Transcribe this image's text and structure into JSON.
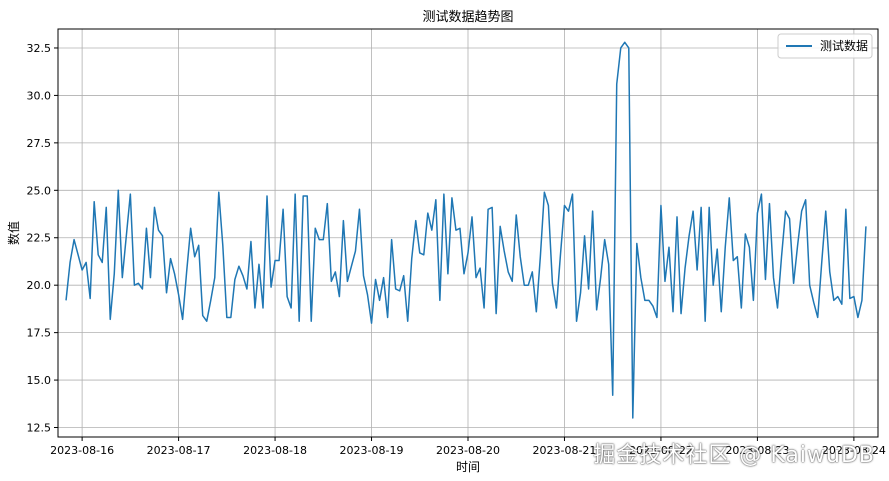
{
  "chart_data": {
    "type": "line",
    "title": "测试数据趋势图",
    "xlabel": "时间",
    "ylabel": "数值",
    "grid": true,
    "legend_position": "top-right",
    "color": "#1f77b4",
    "xlim": [
      "2023-08-15T18:00",
      "2023-08-24T06:00"
    ],
    "ylim": [
      12.0,
      33.5
    ],
    "yticks": [
      12.5,
      15.0,
      17.5,
      20.0,
      22.5,
      25.0,
      27.5,
      30.0,
      32.5
    ],
    "ytick_labels": [
      "12.5",
      "15.0",
      "17.5",
      "20.0",
      "22.5",
      "25.0",
      "27.5",
      "30.0",
      "32.5"
    ],
    "xticks": [
      "2023-08-16",
      "2023-08-17",
      "2023-08-18",
      "2023-08-19",
      "2023-08-20",
      "2023-08-21",
      "2023-08-22",
      "2023-08-23",
      "2023-08-24"
    ],
    "xtick_labels": [
      "2023-08-16",
      "2023-08-17",
      "2023-08-18",
      "2023-08-19",
      "2023-08-20",
      "2023-08-21",
      "2023-08-22",
      "2023-08-23",
      "2023-08-24"
    ],
    "x_start": "2023-08-15T20:00",
    "x_step_hours": 1,
    "series": [
      {
        "name": "测试数据",
        "values": [
          19.2,
          21.2,
          22.4,
          21.6,
          20.8,
          21.2,
          19.3,
          24.4,
          21.6,
          21.2,
          24.1,
          18.2,
          20.6,
          25.0,
          20.4,
          22.6,
          24.8,
          20.0,
          20.1,
          19.8,
          23.0,
          20.4,
          24.1,
          22.9,
          22.6,
          19.6,
          21.4,
          20.6,
          19.5,
          18.2,
          20.7,
          23.0,
          21.5,
          22.1,
          18.4,
          18.1,
          19.2,
          20.4,
          24.9,
          22.1,
          18.3,
          18.3,
          20.3,
          21.0,
          20.5,
          19.8,
          22.3,
          18.8,
          21.1,
          18.8,
          24.7,
          19.9,
          21.3,
          21.3,
          24.0,
          19.4,
          18.8,
          24.8,
          18.1,
          24.7,
          24.7,
          18.1,
          23.0,
          22.4,
          22.4,
          24.3,
          20.2,
          20.7,
          19.4,
          23.4,
          20.2,
          21.0,
          21.8,
          24.0,
          20.5,
          19.5,
          18.0,
          20.3,
          19.2,
          20.4,
          18.3,
          22.4,
          19.8,
          19.7,
          20.5,
          18.1,
          21.4,
          23.4,
          21.7,
          21.6,
          23.8,
          22.9,
          24.5,
          19.2,
          24.8,
          20.6,
          24.6,
          22.9,
          23.0,
          20.6,
          21.7,
          23.6,
          20.4,
          20.9,
          18.8,
          24.0,
          24.1,
          18.5,
          23.1,
          21.8,
          20.7,
          20.2,
          23.7,
          21.5,
          20.0,
          20.0,
          20.7,
          18.6,
          21.5,
          24.9,
          24.2,
          20.1,
          18.8,
          21.6,
          24.2,
          23.9,
          24.8,
          18.1,
          19.6,
          22.6,
          19.8,
          23.9,
          18.7,
          20.4,
          22.4,
          21.1,
          14.2,
          30.6,
          32.5,
          32.8,
          32.5,
          13.0,
          22.2,
          20.4,
          19.2,
          19.2,
          18.9,
          18.3,
          24.2,
          20.2,
          22.0,
          18.6,
          23.6,
          18.5,
          20.9,
          22.6,
          23.9,
          20.8,
          24.1,
          18.1,
          24.1,
          20.0,
          21.9,
          18.6,
          22.0,
          24.6,
          21.3,
          21.5,
          18.8,
          22.7,
          22.0,
          19.2,
          23.8,
          24.8,
          20.3,
          24.3,
          20.4,
          18.8,
          21.5,
          23.9,
          23.5,
          20.1,
          22.1,
          23.9,
          24.5,
          20.0,
          19.1,
          18.3,
          21.2,
          23.9,
          20.7,
          19.2,
          19.4,
          19.0,
          24.0,
          19.3,
          19.4,
          18.3,
          19.2,
          23.1
        ]
      }
    ]
  }
}
